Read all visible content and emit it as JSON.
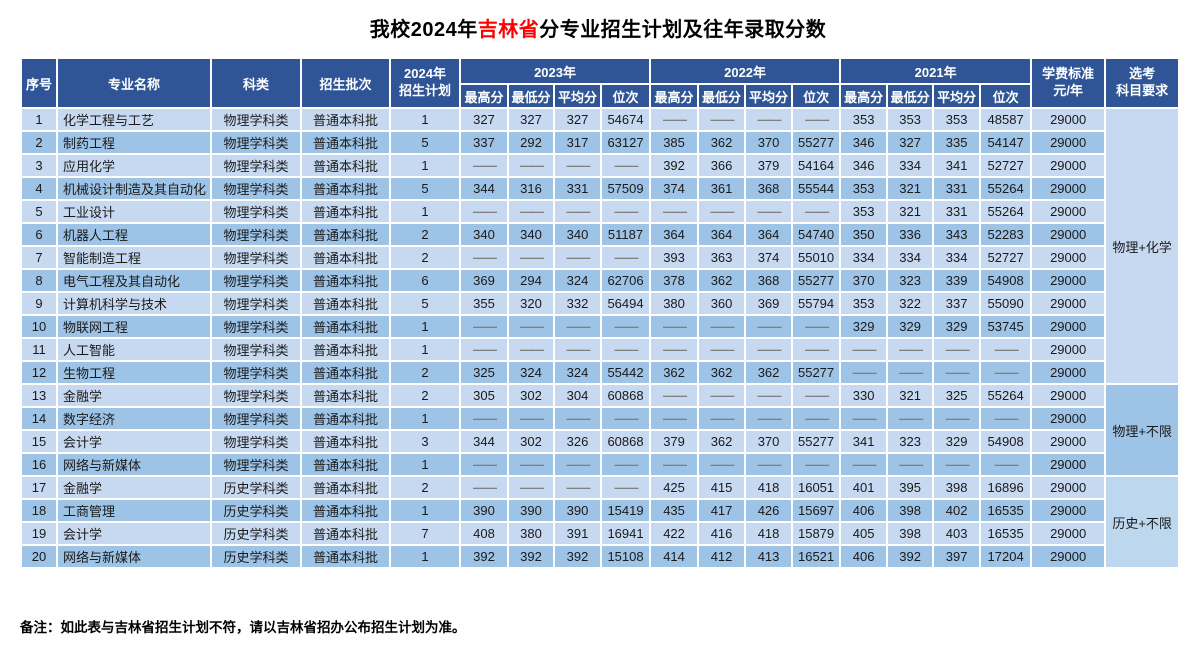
{
  "title": {
    "prefix": "我校2024年",
    "highlight": "吉林省",
    "suffix": "分专业招生计划及往年录取分数"
  },
  "header": {
    "index": "序号",
    "major": "专业名称",
    "category": "科类",
    "batch": "招生批次",
    "plan_line1": "2024年",
    "plan_line2": "招生计划",
    "years": [
      "2023年",
      "2022年",
      "2021年"
    ],
    "subcols": [
      "最高分",
      "最低分",
      "平均分",
      "位次"
    ],
    "tuition_line1": "学费标准",
    "tuition_line2": "元/年",
    "req_line1": "选考",
    "req_line2": "科目要求"
  },
  "dash": "——",
  "rows": [
    {
      "no": "1",
      "major": "化学工程与工艺",
      "category": "物理学科类",
      "batch": "普通本科批",
      "plan": "1",
      "y2023": [
        "327",
        "327",
        "327",
        "54674"
      ],
      "y2022": [
        "——",
        "——",
        "——",
        "——"
      ],
      "y2021": [
        "353",
        "353",
        "353",
        "48587"
      ],
      "tuition": "29000"
    },
    {
      "no": "2",
      "major": "制药工程",
      "category": "物理学科类",
      "batch": "普通本科批",
      "plan": "5",
      "y2023": [
        "337",
        "292",
        "317",
        "63127"
      ],
      "y2022": [
        "385",
        "362",
        "370",
        "55277"
      ],
      "y2021": [
        "346",
        "327",
        "335",
        "54147"
      ],
      "tuition": "29000"
    },
    {
      "no": "3",
      "major": "应用化学",
      "category": "物理学科类",
      "batch": "普通本科批",
      "plan": "1",
      "y2023": [
        "——",
        "——",
        "——",
        "——"
      ],
      "y2022": [
        "392",
        "366",
        "379",
        "54164"
      ],
      "y2021": [
        "346",
        "334",
        "341",
        "52727"
      ],
      "tuition": "29000"
    },
    {
      "no": "4",
      "major": "机械设计制造及其自动化",
      "category": "物理学科类",
      "batch": "普通本科批",
      "plan": "5",
      "y2023": [
        "344",
        "316",
        "331",
        "57509"
      ],
      "y2022": [
        "374",
        "361",
        "368",
        "55544"
      ],
      "y2021": [
        "353",
        "321",
        "331",
        "55264"
      ],
      "tuition": "29000"
    },
    {
      "no": "5",
      "major": "工业设计",
      "category": "物理学科类",
      "batch": "普通本科批",
      "plan": "1",
      "y2023": [
        "——",
        "——",
        "——",
        "——"
      ],
      "y2022": [
        "——",
        "——",
        "——",
        "——"
      ],
      "y2021": [
        "353",
        "321",
        "331",
        "55264"
      ],
      "tuition": "29000"
    },
    {
      "no": "6",
      "major": "机器人工程",
      "category": "物理学科类",
      "batch": "普通本科批",
      "plan": "2",
      "y2023": [
        "340",
        "340",
        "340",
        "51187"
      ],
      "y2022": [
        "364",
        "364",
        "364",
        "54740"
      ],
      "y2021": [
        "350",
        "336",
        "343",
        "52283"
      ],
      "tuition": "29000"
    },
    {
      "no": "7",
      "major": "智能制造工程",
      "category": "物理学科类",
      "batch": "普通本科批",
      "plan": "2",
      "y2023": [
        "——",
        "——",
        "——",
        "——"
      ],
      "y2022": [
        "393",
        "363",
        "374",
        "55010"
      ],
      "y2021": [
        "334",
        "334",
        "334",
        "52727"
      ],
      "tuition": "29000"
    },
    {
      "no": "8",
      "major": "电气工程及其自动化",
      "category": "物理学科类",
      "batch": "普通本科批",
      "plan": "6",
      "y2023": [
        "369",
        "294",
        "324",
        "62706"
      ],
      "y2022": [
        "378",
        "362",
        "368",
        "55277"
      ],
      "y2021": [
        "370",
        "323",
        "339",
        "54908"
      ],
      "tuition": "29000"
    },
    {
      "no": "9",
      "major": "计算机科学与技术",
      "category": "物理学科类",
      "batch": "普通本科批",
      "plan": "5",
      "y2023": [
        "355",
        "320",
        "332",
        "56494"
      ],
      "y2022": [
        "380",
        "360",
        "369",
        "55794"
      ],
      "y2021": [
        "353",
        "322",
        "337",
        "55090"
      ],
      "tuition": "29000"
    },
    {
      "no": "10",
      "major": "物联网工程",
      "category": "物理学科类",
      "batch": "普通本科批",
      "plan": "1",
      "y2023": [
        "——",
        "——",
        "——",
        "——"
      ],
      "y2022": [
        "——",
        "——",
        "——",
        "——"
      ],
      "y2021": [
        "329",
        "329",
        "329",
        "53745"
      ],
      "tuition": "29000"
    },
    {
      "no": "11",
      "major": "人工智能",
      "category": "物理学科类",
      "batch": "普通本科批",
      "plan": "1",
      "y2023": [
        "——",
        "——",
        "——",
        "——"
      ],
      "y2022": [
        "——",
        "——",
        "——",
        "——"
      ],
      "y2021": [
        "——",
        "——",
        "——",
        "——"
      ],
      "tuition": "29000"
    },
    {
      "no": "12",
      "major": "生物工程",
      "category": "物理学科类",
      "batch": "普通本科批",
      "plan": "2",
      "y2023": [
        "325",
        "324",
        "324",
        "55442"
      ],
      "y2022": [
        "362",
        "362",
        "362",
        "55277"
      ],
      "y2021": [
        "——",
        "——",
        "——",
        "——"
      ],
      "tuition": "29000"
    },
    {
      "no": "13",
      "major": "金融学",
      "category": "物理学科类",
      "batch": "普通本科批",
      "plan": "2",
      "y2023": [
        "305",
        "302",
        "304",
        "60868"
      ],
      "y2022": [
        "——",
        "——",
        "——",
        "——"
      ],
      "y2021": [
        "330",
        "321",
        "325",
        "55264"
      ],
      "tuition": "29000"
    },
    {
      "no": "14",
      "major": "数字经济",
      "category": "物理学科类",
      "batch": "普通本科批",
      "plan": "1",
      "y2023": [
        "——",
        "——",
        "——",
        "——"
      ],
      "y2022": [
        "——",
        "——",
        "——",
        "——"
      ],
      "y2021": [
        "——",
        "——",
        "——",
        "——"
      ],
      "tuition": "29000"
    },
    {
      "no": "15",
      "major": "会计学",
      "category": "物理学科类",
      "batch": "普通本科批",
      "plan": "3",
      "y2023": [
        "344",
        "302",
        "326",
        "60868"
      ],
      "y2022": [
        "379",
        "362",
        "370",
        "55277"
      ],
      "y2021": [
        "341",
        "323",
        "329",
        "54908"
      ],
      "tuition": "29000"
    },
    {
      "no": "16",
      "major": "网络与新媒体",
      "category": "物理学科类",
      "batch": "普通本科批",
      "plan": "1",
      "y2023": [
        "——",
        "——",
        "——",
        "——"
      ],
      "y2022": [
        "——",
        "——",
        "——",
        "——"
      ],
      "y2021": [
        "——",
        "——",
        "——",
        "——"
      ],
      "tuition": "29000"
    },
    {
      "no": "17",
      "major": "金融学",
      "category": "历史学科类",
      "batch": "普通本科批",
      "plan": "2",
      "y2023": [
        "——",
        "——",
        "——",
        "——"
      ],
      "y2022": [
        "425",
        "415",
        "418",
        "16051"
      ],
      "y2021": [
        "401",
        "395",
        "398",
        "16896"
      ],
      "tuition": "29000"
    },
    {
      "no": "18",
      "major": "工商管理",
      "category": "历史学科类",
      "batch": "普通本科批",
      "plan": "1",
      "y2023": [
        "390",
        "390",
        "390",
        "15419"
      ],
      "y2022": [
        "435",
        "417",
        "426",
        "15697"
      ],
      "y2021": [
        "406",
        "398",
        "402",
        "16535"
      ],
      "tuition": "29000"
    },
    {
      "no": "19",
      "major": "会计学",
      "category": "历史学科类",
      "batch": "普通本科批",
      "plan": "7",
      "y2023": [
        "408",
        "380",
        "391",
        "16941"
      ],
      "y2022": [
        "422",
        "416",
        "418",
        "15879"
      ],
      "y2021": [
        "405",
        "398",
        "403",
        "16535"
      ],
      "tuition": "29000"
    },
    {
      "no": "20",
      "major": "网络与新媒体",
      "category": "历史学科类",
      "batch": "普通本科批",
      "plan": "1",
      "y2023": [
        "392",
        "392",
        "392",
        "15108"
      ],
      "y2022": [
        "414",
        "412",
        "413",
        "16521"
      ],
      "y2021": [
        "406",
        "392",
        "397",
        "17204"
      ],
      "tuition": "29000"
    }
  ],
  "req_groups": [
    {
      "label": "物理+化学",
      "start": 1,
      "span": 12,
      "shade": "light"
    },
    {
      "label": "物理+不限",
      "start": 13,
      "span": 4,
      "shade": "mid"
    },
    {
      "label": "历史+不限",
      "start": 17,
      "span": 4,
      "shade": "light2"
    }
  ],
  "note": "备注：如此表与吉林省招生计划不符，请以吉林省招办公布招生计划为准。",
  "colors": {
    "header_bg": "#2F5597",
    "row_light": "#C6D9F0",
    "row_dark": "#9DC3E6",
    "req_light": "#C6D9F0",
    "req_mid": "#9DC3E6",
    "req_light2": "#BDD7EE",
    "title_highlight": "#FF0000",
    "dash_color": "#808080"
  }
}
